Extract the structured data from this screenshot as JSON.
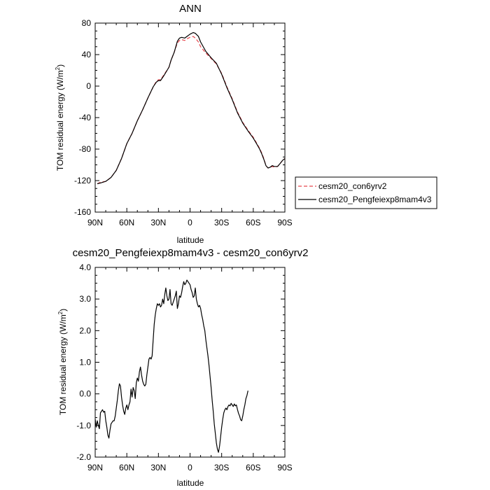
{
  "chart_data": [
    {
      "type": "line",
      "title": "ANN",
      "xlabel": "latitude",
      "ylabel": "TOM residual energy (W/m²)",
      "ylabel_main": "TOM residual energy (W/m",
      "ylabel_sup": "2",
      "ylabel_end": ")",
      "xlim": [
        90,
        -90
      ],
      "ylim": [
        -160,
        80
      ],
      "x_ticks": [
        90,
        60,
        30,
        0,
        -30,
        -60,
        -90
      ],
      "x_tick_labels": [
        "90N",
        "60N",
        "30N",
        "0",
        "30S",
        "60S",
        "90S"
      ],
      "y_ticks": [
        80,
        40,
        0,
        -40,
        -80,
        -120,
        -160
      ],
      "y_tick_labels": [
        "80",
        "40",
        "0",
        "-40",
        "-80",
        "-120",
        "-160"
      ],
      "legend_position": "right",
      "series": [
        {
          "name": "cesm20_con6yrv2",
          "color": "#e8474e",
          "dash": "dashed",
          "points": [
            [
              88,
              -124
            ],
            [
              85,
              -122
            ],
            [
              80,
              -121
            ],
            [
              75,
              -116
            ],
            [
              70,
              -107
            ],
            [
              65,
              -92
            ],
            [
              60,
              -73
            ],
            [
              55,
              -60
            ],
            [
              50,
              -44
            ],
            [
              45,
              -30
            ],
            [
              40,
              -15
            ],
            [
              35,
              -1
            ],
            [
              32,
              6
            ],
            [
              30,
              8
            ],
            [
              28,
              8
            ],
            [
              25,
              14
            ],
            [
              20,
              24
            ],
            [
              18,
              33
            ],
            [
              15,
              43
            ],
            [
              12,
              55
            ],
            [
              10,
              58
            ],
            [
              8,
              59
            ],
            [
              5,
              58
            ],
            [
              3,
              60
            ],
            [
              0,
              62
            ],
            [
              -3,
              63
            ],
            [
              -5,
              61
            ],
            [
              -8,
              56
            ],
            [
              -10,
              50
            ],
            [
              -15,
              42
            ],
            [
              -20,
              35
            ],
            [
              -25,
              28
            ],
            [
              -30,
              16
            ],
            [
              -35,
              -1
            ],
            [
              -40,
              -16
            ],
            [
              -45,
              -33
            ],
            [
              -50,
              -46
            ],
            [
              -55,
              -56
            ],
            [
              -60,
              -65
            ],
            [
              -63,
              -72
            ],
            [
              -66,
              -79
            ],
            [
              -68,
              -85
            ],
            [
              -70,
              -92
            ],
            [
              -72,
              -101
            ],
            [
              -74,
              -104
            ],
            [
              -76,
              -103
            ],
            [
              -78,
              -102
            ],
            [
              -80,
              -103
            ],
            [
              -83,
              -102
            ],
            [
              -85,
              -99
            ],
            [
              -88,
              -94
            ],
            [
              -90,
              -92
            ]
          ]
        },
        {
          "name": "cesm20_Pengfeiexp8mam4v3",
          "color": "#000000",
          "dash": "solid",
          "points": [
            [
              88,
              -124
            ],
            [
              85,
              -123
            ],
            [
              80,
              -121
            ],
            [
              75,
              -116
            ],
            [
              70,
              -107
            ],
            [
              65,
              -92
            ],
            [
              60,
              -73
            ],
            [
              55,
              -60
            ],
            [
              50,
              -44
            ],
            [
              45,
              -30
            ],
            [
              40,
              -15
            ],
            [
              35,
              -1
            ],
            [
              32,
              5
            ],
            [
              30,
              7
            ],
            [
              28,
              7
            ],
            [
              25,
              13
            ],
            [
              20,
              24
            ],
            [
              18,
              33
            ],
            [
              15,
              43
            ],
            [
              12,
              57
            ],
            [
              10,
              61
            ],
            [
              8,
              62
            ],
            [
              5,
              61
            ],
            [
              3,
              63
            ],
            [
              0,
              66
            ],
            [
              -3,
              68
            ],
            [
              -5,
              67
            ],
            [
              -8,
              63
            ],
            [
              -10,
              56
            ],
            [
              -15,
              44
            ],
            [
              -20,
              36
            ],
            [
              -25,
              29
            ],
            [
              -30,
              15
            ],
            [
              -35,
              -2
            ],
            [
              -40,
              -17
            ],
            [
              -45,
              -34
            ],
            [
              -50,
              -47
            ],
            [
              -55,
              -57
            ],
            [
              -60,
              -66
            ],
            [
              -63,
              -73
            ],
            [
              -66,
              -80
            ],
            [
              -68,
              -86
            ],
            [
              -70,
              -93
            ],
            [
              -72,
              -101
            ],
            [
              -74,
              -104
            ],
            [
              -76,
              -103
            ],
            [
              -78,
              -101
            ],
            [
              -80,
              -102
            ],
            [
              -83,
              -102
            ],
            [
              -85,
              -99
            ],
            [
              -88,
              -94
            ],
            [
              -90,
              -92
            ]
          ]
        }
      ]
    },
    {
      "type": "line",
      "title": "cesm20_Pengfeiexp8mam4v3 - cesm20_con6yrv2",
      "xlabel": "latitude",
      "ylabel": "TOM residual energy (W/m²)",
      "ylabel_main": "TOM residual energy (W/m",
      "ylabel_sup": "2",
      "ylabel_end": ")",
      "xlim": [
        90,
        -90
      ],
      "ylim": [
        -2.0,
        4.0
      ],
      "x_ticks": [
        90,
        60,
        30,
        0,
        -30,
        -60,
        -90
      ],
      "x_tick_labels": [
        "90N",
        "60N",
        "30N",
        "0",
        "30S",
        "60S",
        "90S"
      ],
      "y_ticks": [
        4.0,
        3.0,
        2.0,
        1.0,
        0.0,
        -1.0,
        -2.0
      ],
      "y_tick_labels": [
        "4.0",
        "3.0",
        "2.0",
        "1.0",
        "0.0",
        "-1.0",
        "-2.0"
      ],
      "series": [
        {
          "color": "#000000",
          "dash": "solid",
          "points": [
            [
              90,
              -0.8
            ],
            [
              89,
              -1.05
            ],
            [
              88,
              -0.85
            ],
            [
              87,
              -1.0
            ],
            [
              86,
              -1.1
            ],
            [
              85,
              -0.6
            ],
            [
              84,
              -0.55
            ],
            [
              83,
              -0.5
            ],
            [
              82,
              -0.58
            ],
            [
              81,
              -0.55
            ],
            [
              80,
              -0.85
            ],
            [
              79,
              -1.05
            ],
            [
              78,
              -1.3
            ],
            [
              77,
              -1.4
            ],
            [
              76,
              -1.15
            ],
            [
              75,
              -0.95
            ],
            [
              74,
              -0.9
            ],
            [
              73,
              -0.85
            ],
            [
              72,
              -0.85
            ],
            [
              71,
              -0.7
            ],
            [
              70,
              -0.45
            ],
            [
              69,
              -0.2
            ],
            [
              68,
              0.1
            ],
            [
              67,
              0.32
            ],
            [
              66,
              0.25
            ],
            [
              65,
              -0.1
            ],
            [
              64,
              -0.35
            ],
            [
              63,
              -0.55
            ],
            [
              62,
              -0.65
            ],
            [
              61,
              -0.45
            ],
            [
              60,
              -0.35
            ],
            [
              59,
              -0.5
            ],
            [
              58,
              -0.35
            ],
            [
              57,
              -0.25
            ],
            [
              56,
              0.15
            ],
            [
              55,
              -0.1
            ],
            [
              54,
              0.2
            ],
            [
              53,
              0.1
            ],
            [
              52,
              -0.15
            ],
            [
              51,
              0.35
            ],
            [
              50,
              0.5
            ],
            [
              49,
              0.4
            ],
            [
              48,
              0.7
            ],
            [
              47,
              0.85
            ],
            [
              46,
              0.6
            ],
            [
              45,
              0.4
            ],
            [
              44,
              0.3
            ],
            [
              43,
              0.25
            ],
            [
              42,
              0.3
            ],
            [
              41,
              0.6
            ],
            [
              40,
              0.85
            ],
            [
              39,
              1.1
            ],
            [
              38,
              1.15
            ],
            [
              37,
              1.1
            ],
            [
              36,
              1.2
            ],
            [
              35,
              1.7
            ],
            [
              34,
              2.2
            ],
            [
              33,
              2.5
            ],
            [
              32,
              2.7
            ],
            [
              31,
              2.85
            ],
            [
              30,
              2.8
            ],
            [
              29,
              2.85
            ],
            [
              28,
              2.75
            ],
            [
              27,
              2.8
            ],
            [
              26,
              3.0
            ],
            [
              25,
              2.85
            ],
            [
              24,
              3.15
            ],
            [
              23,
              3.35
            ],
            [
              22,
              3.1
            ],
            [
              21,
              2.95
            ],
            [
              20,
              3.0
            ],
            [
              19,
              3.3
            ],
            [
              18,
              2.85
            ],
            [
              17,
              2.8
            ],
            [
              16,
              2.9
            ],
            [
              15,
              3.0
            ],
            [
              14,
              3.1
            ],
            [
              13,
              3.25
            ],
            [
              12,
              2.7
            ],
            [
              11,
              2.85
            ],
            [
              10,
              3.1
            ],
            [
              9,
              3.05
            ],
            [
              8,
              3.2
            ],
            [
              7,
              3.4
            ],
            [
              6,
              3.55
            ],
            [
              5,
              3.45
            ],
            [
              4,
              3.5
            ],
            [
              3,
              3.6
            ],
            [
              2,
              3.55
            ],
            [
              1,
              3.5
            ],
            [
              0,
              3.45
            ],
            [
              -1,
              3.3
            ],
            [
              -2,
              3.2
            ],
            [
              -3,
              3.05
            ],
            [
              -4,
              3.1
            ],
            [
              -5,
              3.35
            ],
            [
              -6,
              3.0
            ],
            [
              -7,
              2.85
            ],
            [
              -8,
              2.75
            ],
            [
              -9,
              2.8
            ],
            [
              -10,
              2.7
            ],
            [
              -11,
              2.5
            ],
            [
              -12,
              2.35
            ],
            [
              -13,
              2.15
            ],
            [
              -14,
              2.0
            ],
            [
              -15,
              1.7
            ],
            [
              -16,
              1.45
            ],
            [
              -17,
              1.2
            ],
            [
              -18,
              0.9
            ],
            [
              -19,
              0.55
            ],
            [
              -20,
              0.2
            ],
            [
              -21,
              -0.2
            ],
            [
              -22,
              -0.55
            ],
            [
              -23,
              -0.95
            ],
            [
              -24,
              -1.25
            ],
            [
              -25,
              -1.55
            ],
            [
              -26,
              -1.75
            ],
            [
              -27,
              -1.85
            ],
            [
              -28,
              -1.65
            ],
            [
              -29,
              -1.35
            ],
            [
              -30,
              -1.05
            ],
            [
              -31,
              -0.8
            ],
            [
              -32,
              -0.6
            ],
            [
              -33,
              -0.5
            ],
            [
              -34,
              -0.45
            ],
            [
              -35,
              -0.5
            ],
            [
              -36,
              -0.4
            ],
            [
              -37,
              -0.35
            ],
            [
              -38,
              -0.38
            ],
            [
              -39,
              -0.3
            ],
            [
              -40,
              -0.35
            ],
            [
              -41,
              -0.4
            ],
            [
              -42,
              -0.32
            ],
            [
              -43,
              -0.38
            ],
            [
              -44,
              -0.35
            ],
            [
              -45,
              -0.5
            ],
            [
              -46,
              -0.62
            ],
            [
              -47,
              -0.7
            ],
            [
              -48,
              -0.82
            ],
            [
              -49,
              -0.85
            ],
            [
              -50,
              -0.7
            ],
            [
              -51,
              -0.5
            ],
            [
              -52,
              -0.35
            ],
            [
              -53,
              -0.15
            ],
            [
              -54,
              -0.05
            ],
            [
              -55,
              0.1
            ]
          ]
        }
      ]
    }
  ]
}
